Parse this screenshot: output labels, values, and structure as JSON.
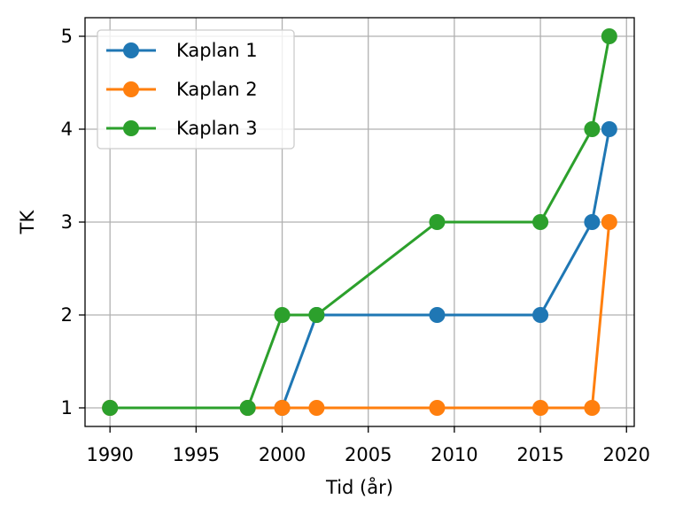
{
  "chart_data": {
    "type": "line",
    "xlabel": "Tid (år)",
    "ylabel": "TK",
    "x": [
      1990,
      1998,
      2000,
      2002,
      2009,
      2015,
      2018,
      2019
    ],
    "series": [
      {
        "name": "Kaplan 1",
        "color": "#1f77b4",
        "values": [
          1,
          1,
          1,
          2,
          2,
          2,
          3,
          4
        ]
      },
      {
        "name": "Kaplan 2",
        "color": "#ff7f0e",
        "values": [
          1,
          1,
          1,
          1,
          1,
          1,
          1,
          3
        ]
      },
      {
        "name": "Kaplan 3",
        "color": "#2ca02c",
        "values": [
          1,
          1,
          2,
          2,
          3,
          3,
          4,
          5
        ]
      }
    ],
    "xlim": [
      1988.55,
      2020.45
    ],
    "ylim": [
      0.8,
      5.2
    ],
    "xticks": [
      1990,
      1995,
      2000,
      2005,
      2010,
      2015,
      2020
    ],
    "yticks": [
      1,
      2,
      3,
      4,
      5
    ],
    "grid": true,
    "legend": "upper left"
  }
}
